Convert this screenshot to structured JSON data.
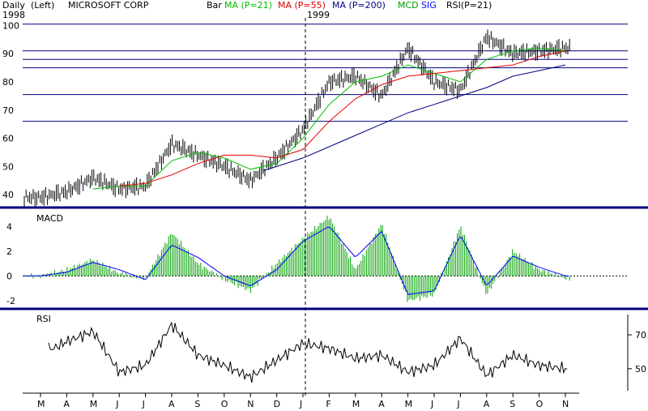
{
  "header": {
    "period": "Daily",
    "scale": "(Left)",
    "symbol": "MICROSOFT CORP",
    "chart_type": "Bar",
    "ma1": "MA (P=21)",
    "ma2": "MA (P=55)",
    "ma3": "MA (P=200)",
    "mcd": "MCD",
    "sig": "SIG",
    "rsi": "RSI(P=21)",
    "year_start": "1998",
    "year_mid": "1999"
  },
  "colors": {
    "ma21": "#00c000",
    "ma55": "#e00000",
    "ma200": "#000080",
    "mcd": "#00a000",
    "sig": "#0000ff",
    "hline": "#000080",
    "separator": "#000080",
    "bars": "#000000"
  },
  "chart_data": [
    {
      "type": "line",
      "panel": "price",
      "ylim": [
        38,
        101
      ],
      "yticks": [
        40,
        50,
        60,
        70,
        80,
        90,
        100
      ],
      "xlabels": [
        "M",
        "A",
        "M",
        "J",
        "J",
        "A",
        "S",
        "O",
        "N",
        "D",
        "J",
        "F",
        "M",
        "A",
        "M",
        "J",
        "J",
        "A",
        "S",
        "O",
        "N"
      ],
      "horizontal_lines": [
        100.5,
        91,
        88,
        85,
        75.5,
        66
      ],
      "series": [
        {
          "name": "Bar",
          "x": [
            0,
            1,
            2,
            3,
            4,
            5,
            6,
            7,
            8,
            9,
            10,
            11,
            12,
            13,
            14,
            15,
            16,
            17,
            18,
            19,
            20
          ],
          "y": [
            39,
            41,
            46,
            42,
            43,
            58,
            54,
            50,
            45,
            53,
            63,
            80,
            82,
            75,
            92,
            80,
            77,
            96,
            90,
            91,
            92
          ]
        },
        {
          "name": "MA (P=21)",
          "x": [
            2,
            3,
            4,
            5,
            6,
            7,
            8,
            9,
            10,
            11,
            12,
            13,
            14,
            15,
            16,
            17,
            18,
            19,
            20
          ],
          "y": [
            42,
            43,
            43,
            52,
            55,
            53,
            49,
            51,
            60,
            72,
            80,
            82,
            86,
            83,
            80,
            88,
            91,
            92,
            91
          ]
        },
        {
          "name": "MA (P=55)",
          "x": [
            3,
            4,
            5,
            6,
            7,
            8,
            9,
            10,
            11,
            12,
            13,
            14,
            15,
            16,
            17,
            18,
            19,
            20
          ],
          "y": [
            43,
            44,
            47,
            51,
            54,
            54,
            53,
            56,
            66,
            74,
            79,
            82,
            83,
            84,
            85,
            86,
            89,
            91
          ]
        },
        {
          "name": "MA (P=200)",
          "x": [
            8.5,
            10,
            11,
            12,
            13,
            14,
            15,
            16,
            17,
            18,
            19,
            20
          ],
          "y": [
            48.5,
            53,
            57,
            61,
            65,
            69,
            72,
            75,
            78,
            82,
            84,
            86
          ]
        }
      ]
    },
    {
      "type": "line",
      "panel": "macd",
      "ylim": [
        -2.2,
        5
      ],
      "yticks": [
        -2,
        0,
        2,
        4
      ],
      "series": [
        {
          "name": "MCD",
          "x": [
            0,
            1,
            2,
            3,
            4,
            5,
            6,
            7,
            8,
            9,
            10,
            11,
            12,
            13,
            14,
            15,
            16,
            17,
            18,
            19,
            20
          ],
          "y": [
            0,
            0.5,
            1.3,
            0.2,
            -0.2,
            3.5,
            1,
            -0.3,
            -1.2,
            1,
            3,
            4.8,
            0.5,
            4.2,
            -2,
            -1.5,
            4,
            -1.5,
            2,
            0.5,
            -0.2
          ]
        },
        {
          "name": "SIG",
          "x": [
            0,
            1,
            2,
            3,
            4,
            5,
            6,
            7,
            8,
            9,
            10,
            11,
            12,
            13,
            14,
            15,
            16,
            17,
            18,
            19,
            20
          ],
          "y": [
            0,
            0.3,
            1.1,
            0.5,
            -0.3,
            2.5,
            1.5,
            0,
            -0.8,
            0.5,
            2.8,
            4,
            1.5,
            3.6,
            -1.5,
            -1.2,
            3.3,
            -0.8,
            1.6,
            0.7,
            0
          ]
        }
      ]
    },
    {
      "type": "line",
      "panel": "rsi",
      "ylim": [
        37,
        82
      ],
      "yticks": [
        50,
        70
      ],
      "series": [
        {
          "name": "RSI(P=21)",
          "x": [
            0.5,
            1,
            2,
            3,
            4,
            5,
            6,
            7,
            8,
            9,
            10,
            11,
            12,
            13,
            14,
            15,
            16,
            17,
            18,
            19,
            20
          ],
          "y": [
            62,
            66,
            72,
            48,
            52,
            76,
            58,
            52,
            45,
            55,
            65,
            62,
            56,
            58,
            48,
            52,
            68,
            46,
            58,
            52,
            50
          ]
        }
      ]
    }
  ],
  "panel_labels": {
    "macd": "MACD",
    "rsi": "RSI"
  }
}
